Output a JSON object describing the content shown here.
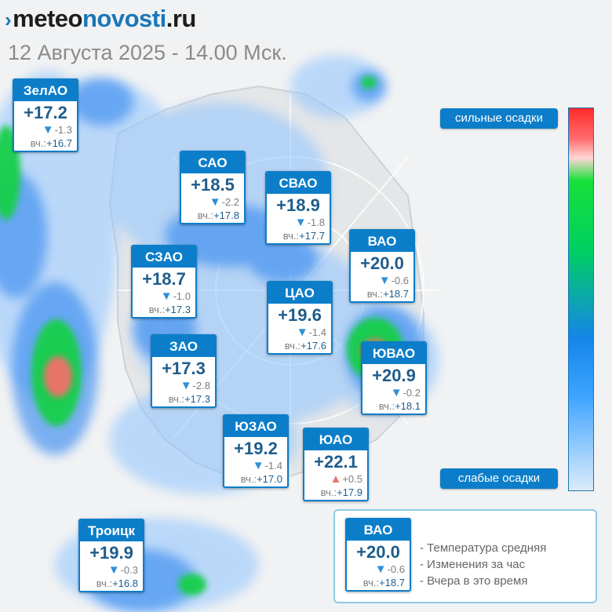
{
  "header": {
    "brand_part1": "meteo",
    "brand_part2": "novosti",
    "brand_part3": ".ru",
    "subtitle": "12 Августа 2025 - 14.00 Мск."
  },
  "labels": {
    "yesterday": "вч.:"
  },
  "districts": [
    {
      "name": "ЗелАО",
      "temp": "+17.2",
      "change": "-1.3",
      "direction": "down",
      "yesterday": "+16.7"
    },
    {
      "name": "САО",
      "temp": "+18.5",
      "change": "-2.2",
      "direction": "down",
      "yesterday": "+17.8"
    },
    {
      "name": "СВАО",
      "temp": "+18.9",
      "change": "-1.8",
      "direction": "down",
      "yesterday": "+17.7"
    },
    {
      "name": "ВАО",
      "temp": "+20.0",
      "change": "-0.6",
      "direction": "down",
      "yesterday": "+18.7"
    },
    {
      "name": "СЗАО",
      "temp": "+18.7",
      "change": "-1.0",
      "direction": "down",
      "yesterday": "+17.3"
    },
    {
      "name": "ЦАО",
      "temp": "+19.6",
      "change": "-1.4",
      "direction": "down",
      "yesterday": "+17.6"
    },
    {
      "name": "ЗАО",
      "temp": "+17.3",
      "change": "-2.8",
      "direction": "down",
      "yesterday": "+17.3"
    },
    {
      "name": "ЮВАО",
      "temp": "+20.9",
      "change": "-0.2",
      "direction": "down",
      "yesterday": "+18.1"
    },
    {
      "name": "ЮЗАО",
      "temp": "+19.2",
      "change": "-1.4",
      "direction": "down",
      "yesterday": "+17.0"
    },
    {
      "name": "ЮАО",
      "temp": "+22.1",
      "change": "+0.5",
      "direction": "up",
      "yesterday": "+17.9"
    },
    {
      "name": "Троицк",
      "temp": "+19.9",
      "change": "-0.3",
      "direction": "down",
      "yesterday": "+16.8"
    }
  ],
  "scale": {
    "top_label": "сильные осадки",
    "bottom_label": "слабые осадки"
  },
  "legend": {
    "sample": {
      "name": "ВАО",
      "temp": "+20.0",
      "change": "-0.6",
      "direction": "down",
      "yesterday": "+18.7"
    },
    "items": [
      "- Температура средняя",
      "- Изменения за час",
      "- Вчера в это время"
    ]
  },
  "colors": {
    "accent": "#0c7ec9",
    "temp_text": "#1f5d8c",
    "arrow_down": "#2f8fd8",
    "arrow_up": "#f07474",
    "precip_light": "#4ba7ff",
    "precip_mid": "#1a6fe0",
    "precip_heavy": "#22d44a",
    "precip_max": "#ff5a5a"
  },
  "icons": {
    "arrow_down": "▼",
    "arrow_up": "▲",
    "brand_mark": "›"
  }
}
